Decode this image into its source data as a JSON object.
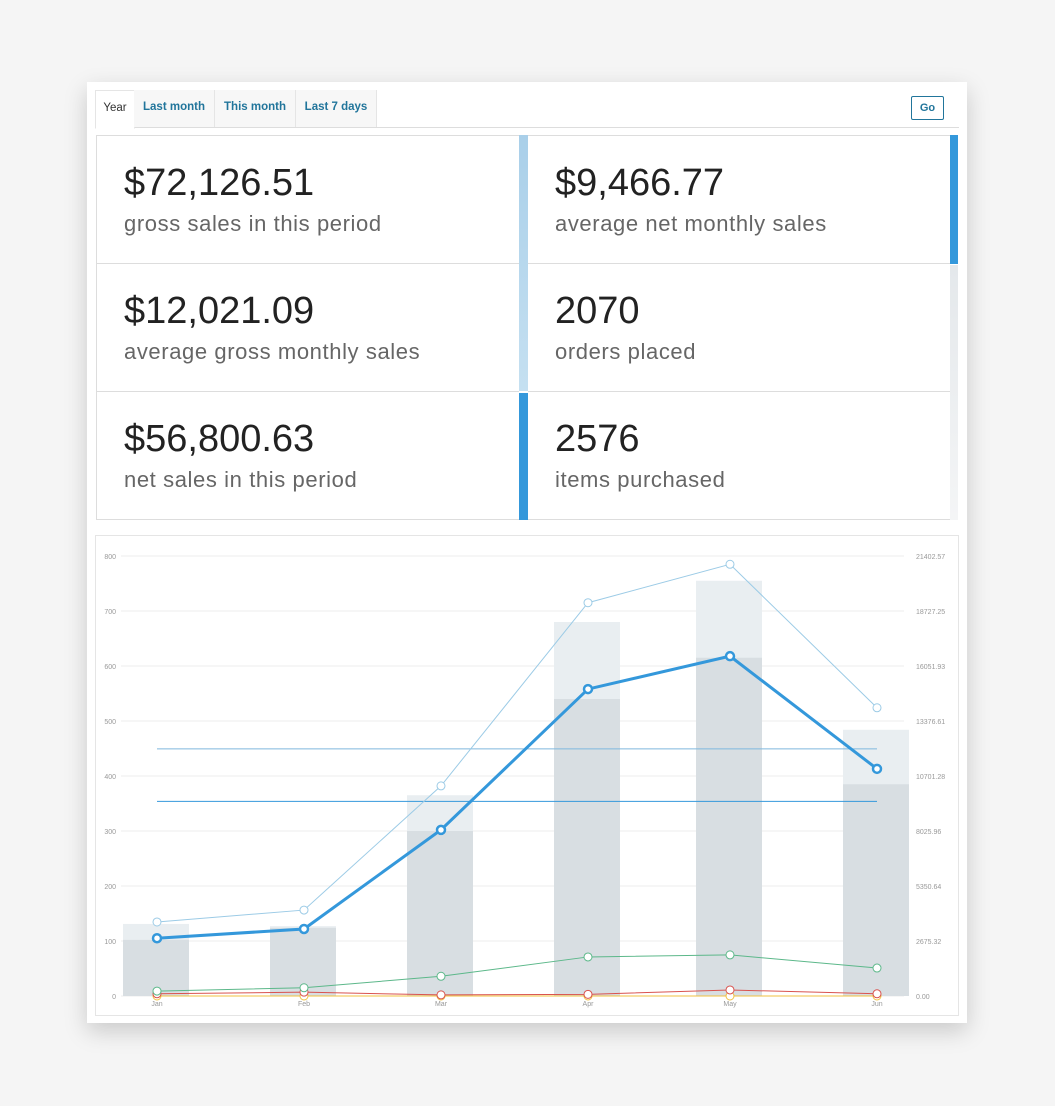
{
  "tabs": [
    {
      "label": "Year",
      "active": true
    },
    {
      "label": "Last month"
    },
    {
      "label": "This month"
    },
    {
      "label": "Last 7 days"
    }
  ],
  "go_label": "Go",
  "stats": [
    {
      "value": "$72,126.51",
      "label": "gross sales in this period"
    },
    {
      "value": "$9,466.77",
      "label": "average net monthly sales"
    },
    {
      "value": "$12,021.09",
      "label": "average gross monthly sales"
    },
    {
      "value": "2070",
      "label": "orders placed"
    },
    {
      "value": "$56,800.63",
      "label": "net sales in this period"
    },
    {
      "value": "2576",
      "label": "items purchased"
    }
  ],
  "colors": {
    "accent": "#3498db",
    "accent_light": "#a9cfe9",
    "gross_line": "#9ccbe6",
    "net_line": "#3498db",
    "green": "#5cb88a",
    "red": "#d9534f",
    "yellow": "#f0c040",
    "bar_light": "#e9eef1",
    "bar_dark": "#d8dee2"
  },
  "chart_data": {
    "type": "bar+line",
    "categories": [
      "Jan",
      "Feb",
      "Mar",
      "Apr",
      "May",
      "Jun"
    ],
    "left_axis": {
      "ticks": [
        "0",
        "100",
        "200",
        "300",
        "400",
        "500",
        "600",
        "700",
        "800"
      ],
      "range": [
        0,
        800
      ]
    },
    "right_axis": {
      "ticks": [
        "0.00",
        "2675.32",
        "5350.64",
        "8025.96",
        "10701.28",
        "13376.61",
        "16051.93",
        "18727.25",
        "21402.57"
      ],
      "range": [
        0,
        21402.57
      ]
    },
    "bars": [
      {
        "axis": "left",
        "color": "#e9eef1",
        "values": [
          131,
          127,
          365,
          680,
          755,
          484
        ]
      },
      {
        "axis": "left",
        "color": "#d8dee2",
        "values": [
          102,
          124,
          300,
          540,
          615,
          385
        ]
      }
    ],
    "lines": [
      {
        "axis": "right",
        "color": "#9ccbe6",
        "width": 1,
        "values": [
          3600,
          4180,
          10220,
          19130,
          21000,
          14020
        ]
      },
      {
        "axis": "right",
        "color": "#3498db",
        "width": 3,
        "values": [
          2810,
          3260,
          8080,
          14930,
          16530,
          11050
        ]
      },
      {
        "axis": "right",
        "color": "#5cb88a",
        "width": 1,
        "values": [
          240,
          400,
          960,
          1900,
          2000,
          1360
        ]
      },
      {
        "axis": "right",
        "color": "#d9534f",
        "width": 1,
        "values": [
          107,
          187,
          54,
          80,
          294,
          107
        ]
      },
      {
        "axis": "right",
        "color": "#f0c040",
        "width": 1,
        "values": [
          0,
          0,
          0,
          0,
          0,
          0
        ]
      }
    ],
    "reference_lines": [
      {
        "axis": "right",
        "color": "#7fb8de",
        "value": 12021.09
      },
      {
        "axis": "right",
        "color": "#3498db",
        "value": 9466.77
      }
    ],
    "grid": true
  }
}
